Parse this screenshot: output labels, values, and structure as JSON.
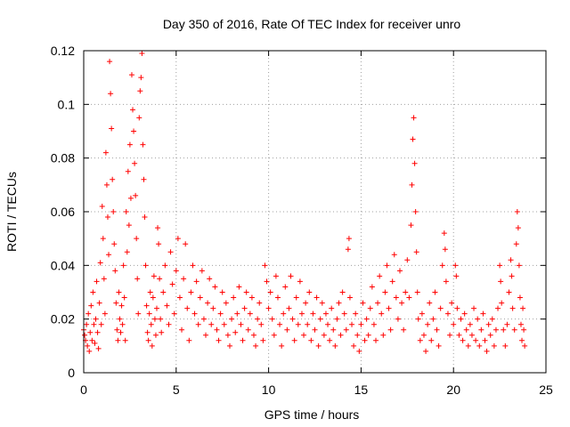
{
  "chart_data": {
    "type": "scatter",
    "title": "Day 350 of 2016, Rate Of TEC Index for receiver unro",
    "xlabel": "GPS time / hours",
    "ylabel": "ROTI / TECUs",
    "xlim": [
      0,
      25
    ],
    "ylim": [
      0,
      0.12
    ],
    "xticks": [
      0,
      5,
      10,
      15,
      20,
      25
    ],
    "xtick_labels": [
      "0",
      "5",
      "10",
      "15",
      "20",
      "25"
    ],
    "yticks": [
      0,
      0.02,
      0.04,
      0.06,
      0.08,
      0.1,
      0.12
    ],
    "ytick_labels": [
      "0",
      "0.02",
      "0.04",
      "0.06",
      "0.08",
      "0.1",
      "0.12"
    ],
    "grid": true,
    "marker": "+",
    "color": "#ff0000",
    "points": [
      [
        0.0,
        0.016
      ],
      [
        0.05,
        0.014
      ],
      [
        0.1,
        0.012
      ],
      [
        0.15,
        0.018
      ],
      [
        0.2,
        0.01
      ],
      [
        0.25,
        0.022
      ],
      [
        0.3,
        0.008
      ],
      [
        0.35,
        0.015
      ],
      [
        0.4,
        0.025
      ],
      [
        0.45,
        0.012
      ],
      [
        0.5,
        0.03
      ],
      [
        0.55,
        0.018
      ],
      [
        0.6,
        0.011
      ],
      [
        0.65,
        0.02
      ],
      [
        0.7,
        0.034
      ],
      [
        0.75,
        0.015
      ],
      [
        0.8,
        0.009
      ],
      [
        0.85,
        0.026
      ],
      [
        0.9,
        0.041
      ],
      [
        0.95,
        0.018
      ],
      [
        1.0,
        0.062
      ],
      [
        1.05,
        0.05
      ],
      [
        1.1,
        0.035
      ],
      [
        1.15,
        0.022
      ],
      [
        1.2,
        0.082
      ],
      [
        1.25,
        0.07
      ],
      [
        1.3,
        0.058
      ],
      [
        1.35,
        0.044
      ],
      [
        1.4,
        0.116
      ],
      [
        1.45,
        0.104
      ],
      [
        1.5,
        0.091
      ],
      [
        1.55,
        0.072
      ],
      [
        1.6,
        0.06
      ],
      [
        1.65,
        0.048
      ],
      [
        1.7,
        0.038
      ],
      [
        1.75,
        0.026
      ],
      [
        1.8,
        0.016
      ],
      [
        1.85,
        0.012
      ],
      [
        1.9,
        0.03
      ],
      [
        1.95,
        0.02
      ],
      [
        2.0,
        0.015
      ],
      [
        2.05,
        0.025
      ],
      [
        2.1,
        0.018
      ],
      [
        2.15,
        0.04
      ],
      [
        2.2,
        0.028
      ],
      [
        2.25,
        0.012
      ],
      [
        2.3,
        0.06
      ],
      [
        2.35,
        0.045
      ],
      [
        2.4,
        0.075
      ],
      [
        2.45,
        0.055
      ],
      [
        2.5,
        0.085
      ],
      [
        2.55,
        0.065
      ],
      [
        2.6,
        0.111
      ],
      [
        2.65,
        0.098
      ],
      [
        2.7,
        0.09
      ],
      [
        2.75,
        0.078
      ],
      [
        2.8,
        0.066
      ],
      [
        2.85,
        0.05
      ],
      [
        2.9,
        0.035
      ],
      [
        2.95,
        0.022
      ],
      [
        3.0,
        0.095
      ],
      [
        3.05,
        0.105
      ],
      [
        3.1,
        0.11
      ],
      [
        3.15,
        0.119
      ],
      [
        3.2,
        0.085
      ],
      [
        3.25,
        0.072
      ],
      [
        3.3,
        0.058
      ],
      [
        3.35,
        0.04
      ],
      [
        3.4,
        0.025
      ],
      [
        3.45,
        0.015
      ],
      [
        3.5,
        0.012
      ],
      [
        3.55,
        0.022
      ],
      [
        3.6,
        0.03
      ],
      [
        3.65,
        0.018
      ],
      [
        3.7,
        0.01
      ],
      [
        3.75,
        0.028
      ],
      [
        3.8,
        0.036
      ],
      [
        3.85,
        0.02
      ],
      [
        3.9,
        0.014
      ],
      [
        3.95,
        0.024
      ],
      [
        4.0,
        0.054
      ],
      [
        4.05,
        0.048
      ],
      [
        4.1,
        0.035
      ],
      [
        4.15,
        0.02
      ],
      [
        4.2,
        0.015
      ],
      [
        4.3,
        0.03
      ],
      [
        4.4,
        0.04
      ],
      [
        4.5,
        0.025
      ],
      [
        4.6,
        0.018
      ],
      [
        4.7,
        0.045
      ],
      [
        4.8,
        0.033
      ],
      [
        4.9,
        0.022
      ],
      [
        5.0,
        0.038
      ],
      [
        5.1,
        0.05
      ],
      [
        5.2,
        0.028
      ],
      [
        5.3,
        0.016
      ],
      [
        5.4,
        0.035
      ],
      [
        5.5,
        0.048
      ],
      [
        5.6,
        0.024
      ],
      [
        5.7,
        0.012
      ],
      [
        5.8,
        0.03
      ],
      [
        5.9,
        0.04
      ],
      [
        6.0,
        0.022
      ],
      [
        6.1,
        0.034
      ],
      [
        6.2,
        0.018
      ],
      [
        6.3,
        0.028
      ],
      [
        6.4,
        0.038
      ],
      [
        6.5,
        0.02
      ],
      [
        6.6,
        0.014
      ],
      [
        6.7,
        0.026
      ],
      [
        6.8,
        0.035
      ],
      [
        6.9,
        0.018
      ],
      [
        7.0,
        0.024
      ],
      [
        7.1,
        0.032
      ],
      [
        7.2,
        0.016
      ],
      [
        7.3,
        0.012
      ],
      [
        7.4,
        0.022
      ],
      [
        7.5,
        0.03
      ],
      [
        7.6,
        0.018
      ],
      [
        7.7,
        0.026
      ],
      [
        7.8,
        0.014
      ],
      [
        7.9,
        0.01
      ],
      [
        8.0,
        0.02
      ],
      [
        8.1,
        0.028
      ],
      [
        8.2,
        0.015
      ],
      [
        8.3,
        0.022
      ],
      [
        8.4,
        0.032
      ],
      [
        8.5,
        0.018
      ],
      [
        8.6,
        0.012
      ],
      [
        8.7,
        0.024
      ],
      [
        8.8,
        0.03
      ],
      [
        8.9,
        0.016
      ],
      [
        9.0,
        0.022
      ],
      [
        9.1,
        0.028
      ],
      [
        9.2,
        0.014
      ],
      [
        9.3,
        0.01
      ],
      [
        9.4,
        0.02
      ],
      [
        9.5,
        0.026
      ],
      [
        9.6,
        0.018
      ],
      [
        9.7,
        0.012
      ],
      [
        9.8,
        0.04
      ],
      [
        9.9,
        0.034
      ],
      [
        10.0,
        0.024
      ],
      [
        10.1,
        0.03
      ],
      [
        10.2,
        0.02
      ],
      [
        10.3,
        0.014
      ],
      [
        10.4,
        0.036
      ],
      [
        10.5,
        0.028
      ],
      [
        10.6,
        0.018
      ],
      [
        10.7,
        0.01
      ],
      [
        10.8,
        0.022
      ],
      [
        10.9,
        0.032
      ],
      [
        11.0,
        0.016
      ],
      [
        11.1,
        0.024
      ],
      [
        11.2,
        0.036
      ],
      [
        11.3,
        0.02
      ],
      [
        11.4,
        0.012
      ],
      [
        11.5,
        0.028
      ],
      [
        11.6,
        0.018
      ],
      [
        11.7,
        0.034
      ],
      [
        11.8,
        0.022
      ],
      [
        11.9,
        0.014
      ],
      [
        12.0,
        0.026
      ],
      [
        12.1,
        0.018
      ],
      [
        12.2,
        0.03
      ],
      [
        12.3,
        0.012
      ],
      [
        12.4,
        0.022
      ],
      [
        12.5,
        0.016
      ],
      [
        12.6,
        0.028
      ],
      [
        12.7,
        0.01
      ],
      [
        12.8,
        0.02
      ],
      [
        12.9,
        0.026
      ],
      [
        13.0,
        0.014
      ],
      [
        13.1,
        0.022
      ],
      [
        13.2,
        0.018
      ],
      [
        13.3,
        0.012
      ],
      [
        13.4,
        0.024
      ],
      [
        13.5,
        0.016
      ],
      [
        13.6,
        0.01
      ],
      [
        13.7,
        0.02
      ],
      [
        13.8,
        0.026
      ],
      [
        13.9,
        0.014
      ],
      [
        14.0,
        0.03
      ],
      [
        14.1,
        0.022
      ],
      [
        14.2,
        0.016
      ],
      [
        14.3,
        0.046
      ],
      [
        14.35,
        0.05
      ],
      [
        14.4,
        0.028
      ],
      [
        14.5,
        0.018
      ],
      [
        14.6,
        0.01
      ],
      [
        14.7,
        0.022
      ],
      [
        14.8,
        0.014
      ],
      [
        14.9,
        0.008
      ],
      [
        15.0,
        0.018
      ],
      [
        15.1,
        0.026
      ],
      [
        15.2,
        0.012
      ],
      [
        15.3,
        0.02
      ],
      [
        15.4,
        0.014
      ],
      [
        15.5,
        0.024
      ],
      [
        15.6,
        0.032
      ],
      [
        15.7,
        0.018
      ],
      [
        15.8,
        0.012
      ],
      [
        15.9,
        0.026
      ],
      [
        16.0,
        0.036
      ],
      [
        16.1,
        0.022
      ],
      [
        16.2,
        0.014
      ],
      [
        16.3,
        0.03
      ],
      [
        16.4,
        0.04
      ],
      [
        16.5,
        0.024
      ],
      [
        16.6,
        0.016
      ],
      [
        16.7,
        0.034
      ],
      [
        16.8,
        0.044
      ],
      [
        16.9,
        0.028
      ],
      [
        17.0,
        0.02
      ],
      [
        17.1,
        0.038
      ],
      [
        17.2,
        0.026
      ],
      [
        17.3,
        0.016
      ],
      [
        17.4,
        0.03
      ],
      [
        17.5,
        0.042
      ],
      [
        17.6,
        0.028
      ],
      [
        17.7,
        0.055
      ],
      [
        17.75,
        0.07
      ],
      [
        17.8,
        0.087
      ],
      [
        17.85,
        0.095
      ],
      [
        17.9,
        0.078
      ],
      [
        17.95,
        0.06
      ],
      [
        18.0,
        0.045
      ],
      [
        18.05,
        0.03
      ],
      [
        18.1,
        0.02
      ],
      [
        18.2,
        0.012
      ],
      [
        18.3,
        0.022
      ],
      [
        18.4,
        0.014
      ],
      [
        18.5,
        0.008
      ],
      [
        18.6,
        0.018
      ],
      [
        18.7,
        0.026
      ],
      [
        18.8,
        0.012
      ],
      [
        18.9,
        0.02
      ],
      [
        19.0,
        0.03
      ],
      [
        19.1,
        0.016
      ],
      [
        19.2,
        0.01
      ],
      [
        19.3,
        0.024
      ],
      [
        19.4,
        0.04
      ],
      [
        19.5,
        0.052
      ],
      [
        19.55,
        0.046
      ],
      [
        19.6,
        0.034
      ],
      [
        19.7,
        0.022
      ],
      [
        19.8,
        0.014
      ],
      [
        19.9,
        0.026
      ],
      [
        20.0,
        0.018
      ],
      [
        20.1,
        0.04
      ],
      [
        20.15,
        0.036
      ],
      [
        20.2,
        0.024
      ],
      [
        20.3,
        0.014
      ],
      [
        20.4,
        0.02
      ],
      [
        20.5,
        0.012
      ],
      [
        20.6,
        0.022
      ],
      [
        20.7,
        0.016
      ],
      [
        20.8,
        0.01
      ],
      [
        20.9,
        0.018
      ],
      [
        21.0,
        0.014
      ],
      [
        21.1,
        0.024
      ],
      [
        21.2,
        0.012
      ],
      [
        21.3,
        0.02
      ],
      [
        21.4,
        0.01
      ],
      [
        21.5,
        0.016
      ],
      [
        21.6,
        0.022
      ],
      [
        21.7,
        0.012
      ],
      [
        21.8,
        0.008
      ],
      [
        21.9,
        0.018
      ],
      [
        22.0,
        0.014
      ],
      [
        22.1,
        0.02
      ],
      [
        22.2,
        0.01
      ],
      [
        22.3,
        0.016
      ],
      [
        22.4,
        0.024
      ],
      [
        22.5,
        0.04
      ],
      [
        22.55,
        0.034
      ],
      [
        22.6,
        0.026
      ],
      [
        22.7,
        0.016
      ],
      [
        22.8,
        0.01
      ],
      [
        22.9,
        0.018
      ],
      [
        23.0,
        0.03
      ],
      [
        23.1,
        0.042
      ],
      [
        23.15,
        0.036
      ],
      [
        23.2,
        0.024
      ],
      [
        23.3,
        0.016
      ],
      [
        23.4,
        0.048
      ],
      [
        23.45,
        0.06
      ],
      [
        23.5,
        0.054
      ],
      [
        23.55,
        0.04
      ],
      [
        23.6,
        0.028
      ],
      [
        23.65,
        0.018
      ],
      [
        23.7,
        0.012
      ],
      [
        23.75,
        0.024
      ],
      [
        23.8,
        0.016
      ],
      [
        23.85,
        0.01
      ]
    ]
  }
}
